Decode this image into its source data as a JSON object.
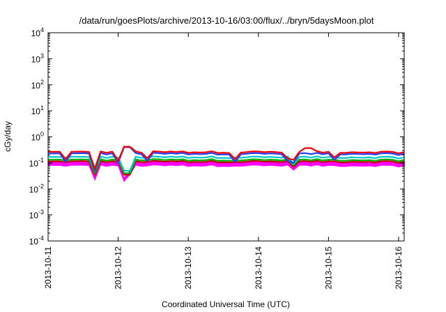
{
  "chart_data": {
    "type": "line",
    "title": "/data/run/goesPlots/archive/2013-10-16/03:00/flux/../bryn/5daysMoon.plot",
    "xlabel": "Coordinated Universal Time (UTC)",
    "ylabel": "cGy/day",
    "yscale": "log",
    "ylim": [
      0.0001,
      10000
    ],
    "y_ticks": [
      {
        "value": 0.0001,
        "base": "10",
        "exp": "-4"
      },
      {
        "value": 0.001,
        "base": "10",
        "exp": "-3"
      },
      {
        "value": 0.01,
        "base": "10",
        "exp": "-2"
      },
      {
        "value": 0.1,
        "base": "10",
        "exp": "-1"
      },
      {
        "value": 1,
        "base": "10",
        "exp": "0"
      },
      {
        "value": 10,
        "base": "10",
        "exp": "1"
      },
      {
        "value": 100,
        "base": "10",
        "exp": "2"
      },
      {
        "value": 1000,
        "base": "10",
        "exp": "3"
      },
      {
        "value": 10000,
        "base": "10",
        "exp": "4"
      }
    ],
    "xlim": [
      "2013-10-11 00:00",
      "2013-10-16 03:00"
    ],
    "x_ticks": [
      "2013-10-11",
      "2013-10-12",
      "2013-10-13",
      "2013-10-14",
      "2013-10-15",
      "2013-10-16"
    ],
    "grid": false,
    "series": [
      {
        "color": "#ff0000",
        "base": 0.26,
        "dips": [
          {
            "x": "2013-10-11 06:00",
            "value": 0.14
          },
          {
            "x": "2013-10-11 16:00",
            "value": 0.06
          },
          {
            "x": "2013-10-12 01:00",
            "value": 0.12
          },
          {
            "x": "2013-10-12 03:00",
            "value": 0.08
          },
          {
            "x": "2013-10-12 10:00",
            "value": 0.15
          },
          {
            "x": "2013-10-13 16:00",
            "value": 0.14
          },
          {
            "x": "2013-10-14 10:00",
            "value": 0.15
          },
          {
            "x": "2013-10-14 12:00",
            "value": 0.13
          },
          {
            "x": "2013-10-15 02:00",
            "value": 0.16
          }
        ],
        "spikes": [
          {
            "x": "2013-10-12 03:00",
            "value": 0.42
          },
          {
            "x": "2013-10-14 17:00",
            "value": 0.37
          }
        ]
      },
      {
        "color": "#2040ff",
        "base": 0.225,
        "dips": [
          {
            "x": "2013-10-11 06:00",
            "value": 0.11
          },
          {
            "x": "2013-10-11 16:00",
            "value": 0.05
          },
          {
            "x": "2013-10-12 01:00",
            "value": 0.1
          },
          {
            "x": "2013-10-12 03:00",
            "value": 0.06
          },
          {
            "x": "2013-10-12 10:00",
            "value": 0.12
          },
          {
            "x": "2013-10-13 16:00",
            "value": 0.11
          },
          {
            "x": "2013-10-14 10:00",
            "value": 0.12
          },
          {
            "x": "2013-10-14 12:00",
            "value": 0.1
          },
          {
            "x": "2013-10-15 02:00",
            "value": 0.13
          }
        ],
        "spikes": [
          {
            "x": "2013-10-12 03:00",
            "value": 0.4
          }
        ]
      },
      {
        "color": "#00c8c8",
        "base": 0.165,
        "dips": [
          {
            "x": "2013-10-11 16:00",
            "value": 0.05
          },
          {
            "x": "2013-10-12 03:00",
            "value": 0.05
          },
          {
            "x": "2013-10-14 12:00",
            "value": 0.09
          }
        ],
        "spikes": []
      },
      {
        "color": "#00b000",
        "base": 0.13,
        "dips": [
          {
            "x": "2013-10-11 16:00",
            "value": 0.04
          },
          {
            "x": "2013-10-12 03:00",
            "value": 0.04
          },
          {
            "x": "2013-10-14 12:00",
            "value": 0.08
          }
        ],
        "spikes": []
      },
      {
        "color": "#c00000",
        "base": 0.112,
        "dips": [
          {
            "x": "2013-10-11 16:00",
            "value": 0.035
          },
          {
            "x": "2013-10-12 03:00",
            "value": 0.035
          },
          {
            "x": "2013-10-14 12:00",
            "value": 0.07
          }
        ],
        "spikes": []
      },
      {
        "color": "#ff00ff",
        "base": 0.088,
        "fill": true,
        "dips": [
          {
            "x": "2013-10-11 16:00",
            "value": 0.025
          },
          {
            "x": "2013-10-12 03:00",
            "value": 0.022
          },
          {
            "x": "2013-10-12 04:00",
            "value": 0.04
          },
          {
            "x": "2013-10-14 12:00",
            "value": 0.06
          }
        ],
        "spikes": []
      }
    ]
  }
}
